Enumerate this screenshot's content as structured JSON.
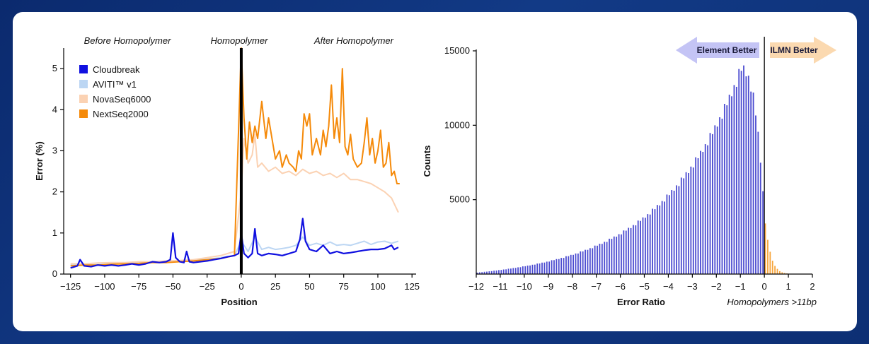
{
  "colors": {
    "background": "#0f3380",
    "cloudbreak": "#1010e0",
    "aviti": "#bcd6f3",
    "novaseq": "#fbd2b3",
    "nextseq": "#f58a0a",
    "hist_negative": "#4a4ad0",
    "hist_positive": "#f7a43a",
    "element_arrow": "#c4c4f5",
    "ilmn_arrow": "#fbd9b0"
  },
  "chart_data": [
    {
      "type": "line",
      "regions": [
        "Before Homopolymer",
        "Homopolymer",
        "After Homopolymer"
      ],
      "xlabel": "Position",
      "ylabel": "Error (%)",
      "xlim": [
        -130,
        128
      ],
      "ylim": [
        0,
        5.5
      ],
      "xticks": [
        -125,
        -100,
        -75,
        -50,
        -25,
        0,
        25,
        50,
        75,
        100,
        125
      ],
      "yticks": [
        0,
        1,
        2,
        3,
        4,
        5
      ],
      "legend": [
        "Cloudbreak",
        "AVITI™ v1",
        "NovaSeq6000",
        "NextSeq2000"
      ],
      "legend_position": "top-left",
      "series": [
        {
          "name": "Cloudbreak",
          "color": "#1010e0",
          "points": [
            [
              -125,
              0.15
            ],
            [
              -120,
              0.2
            ],
            [
              -118,
              0.35
            ],
            [
              -115,
              0.2
            ],
            [
              -110,
              0.18
            ],
            [
              -105,
              0.22
            ],
            [
              -100,
              0.2
            ],
            [
              -95,
              0.22
            ],
            [
              -90,
              0.2
            ],
            [
              -85,
              0.22
            ],
            [
              -80,
              0.25
            ],
            [
              -75,
              0.22
            ],
            [
              -70,
              0.25
            ],
            [
              -65,
              0.3
            ],
            [
              -60,
              0.28
            ],
            [
              -55,
              0.3
            ],
            [
              -52,
              0.35
            ],
            [
              -50,
              1.0
            ],
            [
              -48,
              0.4
            ],
            [
              -45,
              0.3
            ],
            [
              -42,
              0.28
            ],
            [
              -40,
              0.55
            ],
            [
              -38,
              0.3
            ],
            [
              -35,
              0.28
            ],
            [
              -30,
              0.3
            ],
            [
              -25,
              0.32
            ],
            [
              -20,
              0.35
            ],
            [
              -15,
              0.38
            ],
            [
              -10,
              0.42
            ],
            [
              -5,
              0.45
            ],
            [
              -2,
              0.5
            ],
            [
              0,
              1.0
            ],
            [
              2,
              0.5
            ],
            [
              5,
              0.4
            ],
            [
              8,
              0.5
            ],
            [
              10,
              1.1
            ],
            [
              12,
              0.5
            ],
            [
              15,
              0.45
            ],
            [
              20,
              0.5
            ],
            [
              25,
              0.48
            ],
            [
              30,
              0.45
            ],
            [
              35,
              0.5
            ],
            [
              40,
              0.55
            ],
            [
              43,
              0.85
            ],
            [
              45,
              1.35
            ],
            [
              47,
              0.8
            ],
            [
              50,
              0.6
            ],
            [
              55,
              0.55
            ],
            [
              60,
              0.7
            ],
            [
              65,
              0.5
            ],
            [
              70,
              0.55
            ],
            [
              75,
              0.5
            ],
            [
              80,
              0.52
            ],
            [
              85,
              0.55
            ],
            [
              90,
              0.58
            ],
            [
              95,
              0.6
            ],
            [
              100,
              0.6
            ],
            [
              105,
              0.62
            ],
            [
              110,
              0.7
            ],
            [
              112,
              0.6
            ],
            [
              115,
              0.65
            ]
          ]
        },
        {
          "name": "AVITI™ v1",
          "color": "#bcd6f3",
          "points": [
            [
              -125,
              0.22
            ],
            [
              -115,
              0.22
            ],
            [
              -105,
              0.23
            ],
            [
              -95,
              0.24
            ],
            [
              -85,
              0.25
            ],
            [
              -75,
              0.27
            ],
            [
              -65,
              0.3
            ],
            [
              -55,
              0.3
            ],
            [
              -45,
              0.32
            ],
            [
              -35,
              0.34
            ],
            [
              -25,
              0.36
            ],
            [
              -15,
              0.4
            ],
            [
              -5,
              0.45
            ],
            [
              0,
              0.8
            ],
            [
              5,
              0.55
            ],
            [
              10,
              0.9
            ],
            [
              15,
              0.6
            ],
            [
              20,
              0.65
            ],
            [
              25,
              0.6
            ],
            [
              30,
              0.62
            ],
            [
              35,
              0.65
            ],
            [
              40,
              0.7
            ],
            [
              45,
              0.9
            ],
            [
              50,
              0.7
            ],
            [
              55,
              0.75
            ],
            [
              60,
              0.7
            ],
            [
              65,
              0.78
            ],
            [
              70,
              0.7
            ],
            [
              75,
              0.72
            ],
            [
              80,
              0.7
            ],
            [
              85,
              0.75
            ],
            [
              90,
              0.8
            ],
            [
              95,
              0.72
            ],
            [
              100,
              0.78
            ],
            [
              105,
              0.8
            ],
            [
              110,
              0.75
            ],
            [
              115,
              0.8
            ]
          ]
        },
        {
          "name": "NovaSeq6000",
          "color": "#fbd2b3",
          "points": [
            [
              -125,
              0.25
            ],
            [
              -115,
              0.25
            ],
            [
              -105,
              0.27
            ],
            [
              -95,
              0.28
            ],
            [
              -85,
              0.28
            ],
            [
              -75,
              0.3
            ],
            [
              -65,
              0.3
            ],
            [
              -55,
              0.32
            ],
            [
              -45,
              0.33
            ],
            [
              -35,
              0.35
            ],
            [
              -25,
              0.4
            ],
            [
              -15,
              0.45
            ],
            [
              -5,
              0.55
            ],
            [
              0,
              2.0
            ],
            [
              2,
              3.3
            ],
            [
              5,
              2.7
            ],
            [
              8,
              2.9
            ],
            [
              10,
              3.4
            ],
            [
              12,
              2.6
            ],
            [
              15,
              2.7
            ],
            [
              20,
              2.5
            ],
            [
              25,
              2.6
            ],
            [
              30,
              2.45
            ],
            [
              35,
              2.5
            ],
            [
              40,
              2.4
            ],
            [
              45,
              2.55
            ],
            [
              50,
              2.45
            ],
            [
              55,
              2.5
            ],
            [
              60,
              2.4
            ],
            [
              65,
              2.45
            ],
            [
              70,
              2.35
            ],
            [
              75,
              2.45
            ],
            [
              80,
              2.3
            ],
            [
              85,
              2.3
            ],
            [
              90,
              2.25
            ],
            [
              95,
              2.2
            ],
            [
              100,
              2.1
            ],
            [
              105,
              2.0
            ],
            [
              110,
              1.85
            ],
            [
              115,
              1.5
            ]
          ]
        },
        {
          "name": "NextSeq2000",
          "color": "#f58a0a",
          "points": [
            [
              -125,
              0.2
            ],
            [
              -115,
              0.22
            ],
            [
              -105,
              0.22
            ],
            [
              -95,
              0.24
            ],
            [
              -85,
              0.25
            ],
            [
              -75,
              0.26
            ],
            [
              -65,
              0.28
            ],
            [
              -55,
              0.28
            ],
            [
              -45,
              0.3
            ],
            [
              -35,
              0.32
            ],
            [
              -25,
              0.35
            ],
            [
              -15,
              0.38
            ],
            [
              -5,
              0.45
            ],
            [
              0,
              5.5
            ],
            [
              2,
              3.8
            ],
            [
              4,
              2.8
            ],
            [
              6,
              3.7
            ],
            [
              8,
              3.2
            ],
            [
              10,
              3.6
            ],
            [
              12,
              3.3
            ],
            [
              15,
              4.2
            ],
            [
              18,
              3.3
            ],
            [
              20,
              3.8
            ],
            [
              23,
              3.2
            ],
            [
              25,
              2.8
            ],
            [
              28,
              3.0
            ],
            [
              30,
              2.6
            ],
            [
              33,
              2.9
            ],
            [
              35,
              2.7
            ],
            [
              38,
              2.6
            ],
            [
              40,
              2.5
            ],
            [
              42,
              3.0
            ],
            [
              44,
              2.8
            ],
            [
              46,
              3.9
            ],
            [
              48,
              3.6
            ],
            [
              50,
              3.9
            ],
            [
              52,
              2.9
            ],
            [
              55,
              3.3
            ],
            [
              58,
              2.9
            ],
            [
              60,
              3.5
            ],
            [
              62,
              3.1
            ],
            [
              64,
              3.6
            ],
            [
              66,
              4.6
            ],
            [
              68,
              3.3
            ],
            [
              70,
              3.8
            ],
            [
              72,
              3.2
            ],
            [
              74,
              5.0
            ],
            [
              76,
              3.1
            ],
            [
              78,
              2.9
            ],
            [
              80,
              3.4
            ],
            [
              82,
              2.8
            ],
            [
              85,
              2.6
            ],
            [
              88,
              2.7
            ],
            [
              90,
              3.2
            ],
            [
              92,
              3.8
            ],
            [
              94,
              2.9
            ],
            [
              96,
              3.3
            ],
            [
              98,
              2.7
            ],
            [
              100,
              3.0
            ],
            [
              102,
              3.5
            ],
            [
              104,
              2.6
            ],
            [
              106,
              2.7
            ],
            [
              108,
              3.2
            ],
            [
              110,
              2.4
            ],
            [
              112,
              2.5
            ],
            [
              114,
              2.2
            ],
            [
              116,
              2.2
            ]
          ]
        }
      ]
    },
    {
      "type": "bar",
      "xlabel": "Error Ratio",
      "ylabel": "Counts",
      "annotation": "Homopolymers >11bp",
      "arrows": [
        "Element Better",
        "ILMN Better"
      ],
      "xlim": [
        -12,
        2
      ],
      "ylim": [
        0,
        15000
      ],
      "xticks": [
        -12,
        -11,
        -10,
        -9,
        -8,
        -7,
        -6,
        -5,
        -4,
        -3,
        -2,
        -1,
        0,
        1,
        2
      ],
      "yticks": [
        5000,
        10000,
        15000
      ],
      "bin_width": 0.1,
      "shape_params": {
        "start": -12,
        "peak": -1.0,
        "peak_count": 13800,
        "left_start": 100,
        "left_tail_scale": 3.3
      },
      "bars_positive": [
        [
          0.1,
          3400
        ],
        [
          0.2,
          2300
        ],
        [
          0.3,
          1500
        ],
        [
          0.4,
          900
        ],
        [
          0.5,
          550
        ],
        [
          0.6,
          350
        ],
        [
          0.7,
          200
        ],
        [
          0.8,
          120
        ],
        [
          0.9,
          70
        ],
        [
          1.0,
          40
        ]
      ]
    }
  ]
}
